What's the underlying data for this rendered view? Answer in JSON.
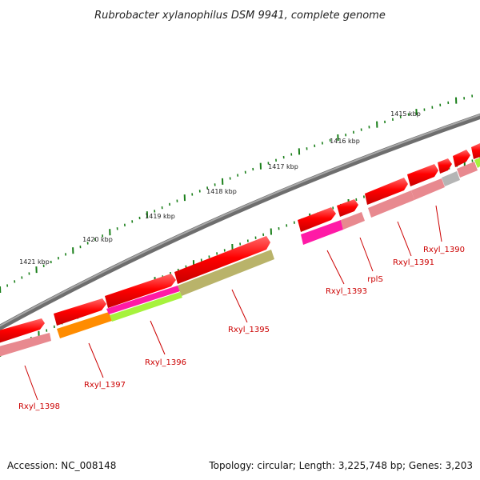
{
  "title": "Rubrobacter xylanophilus DSM 9941, complete genome",
  "footer": {
    "accession": "Accession: NC_008148",
    "summary": "Topology: circular; Length: 3,225,748 bp; Genes: 3,203"
  },
  "ticks": [
    "1415 kbp",
    "1416 kbp",
    "1417 kbp",
    "1418 kbp",
    "1419 kbp",
    "1420 kbp",
    "1421 kbp"
  ],
  "genes": [
    {
      "name": "Rxyl_1390",
      "color": "#e8898f"
    },
    {
      "name": "Rxyl_1391",
      "color": "#e8898f"
    },
    {
      "name": "rplS",
      "color": "#e8898f"
    },
    {
      "name": "Rxyl_1393",
      "color": "#ff1aa6"
    },
    {
      "name": "Rxyl_1395",
      "color": "#b9b36a"
    },
    {
      "name": "Rxyl_1396",
      "color": "#a6f23d"
    },
    {
      "name": "Rxyl_1397",
      "color": "#ff8c00"
    },
    {
      "name": "Rxyl_1398",
      "color": "#e8898f"
    }
  ],
  "colors": {
    "backbone": "#808080",
    "cds": "#ff0000",
    "gc": "#1a7f1a",
    "label_line": "#cc0000",
    "gray_feature": "#b5b5b5",
    "magenta_feature": "#ff1aa6"
  }
}
